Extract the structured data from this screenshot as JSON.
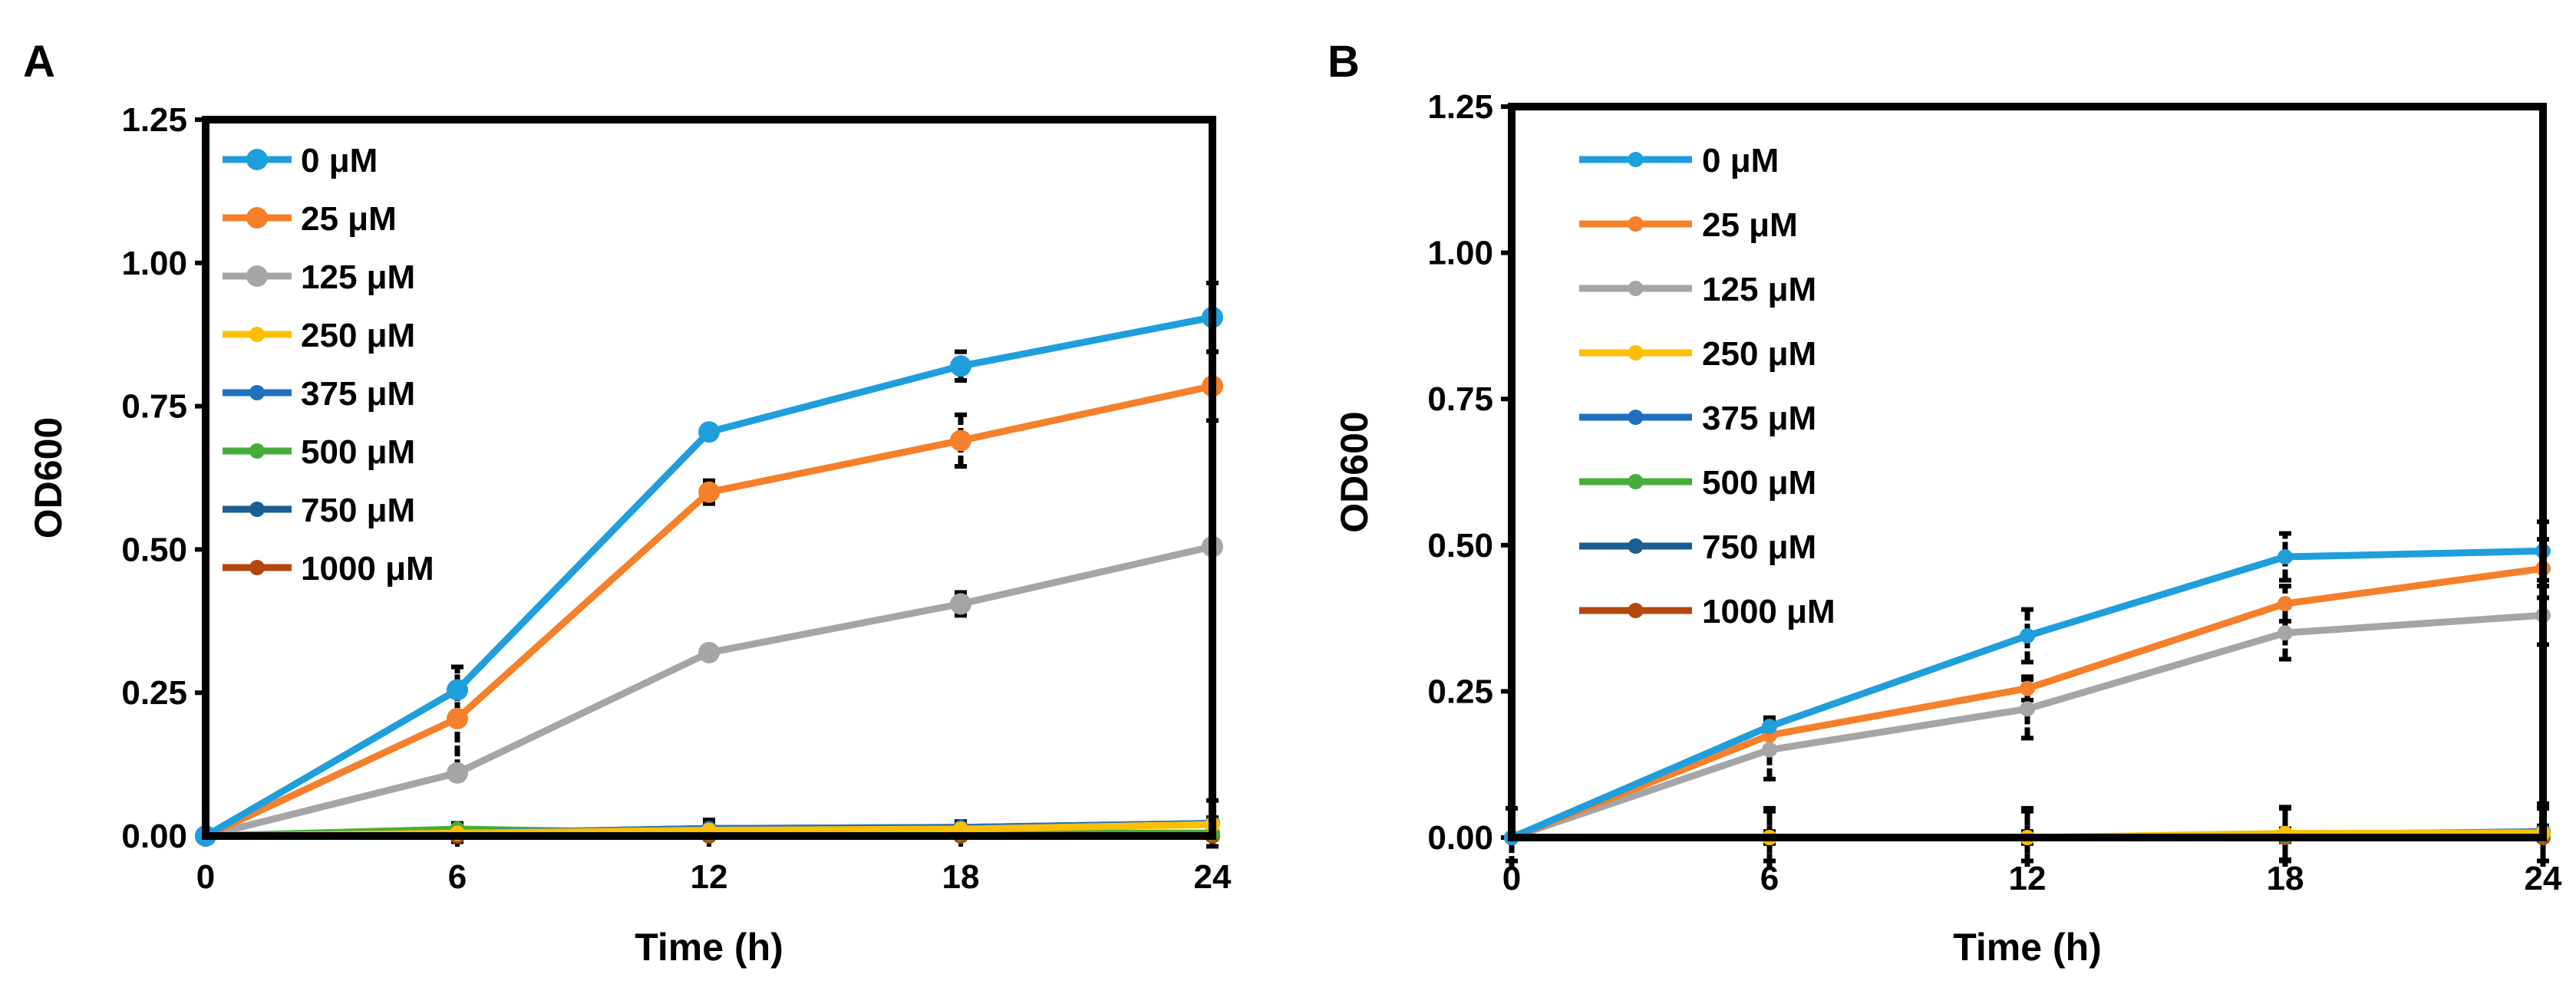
{
  "colors": {
    "0": "#1f9edc",
    "25": "#f57f2a",
    "125": "#a5a5a5",
    "250": "#fdbf00",
    "375": "#1f70c1",
    "500": "#46ad3a",
    "750": "#1a5e93",
    "1000": "#b4480e"
  },
  "chart_data": [
    {
      "panel_label": "A",
      "type": "line",
      "xlabel": "Time (h)",
      "ylabel": "OD600",
      "x": [
        0,
        6,
        12,
        18,
        24
      ],
      "xticks": [
        "0",
        "6",
        "12",
        "18",
        "24"
      ],
      "xlim": [
        0,
        24
      ],
      "ylim": [
        0,
        1.25
      ],
      "yticks": [
        "0.00",
        "0.25",
        "0.50",
        "0.75",
        "1.00",
        "1.25"
      ],
      "grid": false,
      "legend_position": "top-left",
      "series": [
        {
          "name": "0 μM",
          "key": "0",
          "values": [
            0,
            0.255,
            0.705,
            0.82,
            0.905
          ],
          "err": [
            0,
            0.04,
            0.01,
            0.025,
            0.06
          ],
          "big": true
        },
        {
          "name": "25  μM",
          "key": "25",
          "values": [
            0,
            0.205,
            0.6,
            0.69,
            0.785
          ],
          "err": [
            0,
            0.09,
            0.02,
            0.045,
            0.06
          ],
          "big": true
        },
        {
          "name": "125  μM",
          "key": "125",
          "values": [
            0,
            0.11,
            0.32,
            0.405,
            0.505
          ],
          "err": [
            0,
            0.01,
            0.01,
            0.02,
            0.01
          ],
          "big": true
        },
        {
          "name": "250  μM",
          "key": "250",
          "values": [
            0,
            0.005,
            0.01,
            0.012,
            0.02
          ],
          "err": [
            0,
            0.01,
            0.01,
            0.01,
            0.01
          ],
          "big": false
        },
        {
          "name": "375  μM",
          "key": "375",
          "values": [
            0,
            0.005,
            0.013,
            0.015,
            0.022
          ],
          "err": [
            0,
            0.01,
            0.01,
            0.01,
            0.01
          ],
          "big": false
        },
        {
          "name": "500  μM",
          "key": "500",
          "values": [
            0,
            0.012,
            0.005,
            0.005,
            0.005
          ],
          "err": [
            0,
            0.01,
            0.01,
            0.01,
            0.01
          ],
          "big": false
        },
        {
          "name": "750  μM",
          "key": "750",
          "values": [
            0,
            0.005,
            0.013,
            0.015,
            0.022
          ],
          "err": [
            0,
            0.015,
            0.015,
            0.01,
            0.04
          ],
          "big": false
        },
        {
          "name": "1000  μM",
          "key": "1000",
          "values": [
            0,
            0,
            0,
            0,
            0
          ],
          "err": [
            0,
            0,
            0,
            0,
            0
          ],
          "big": false
        }
      ]
    },
    {
      "panel_label": "B",
      "type": "line",
      "xlabel": "Time (h)",
      "ylabel": "OD600",
      "x": [
        0,
        6,
        12,
        18,
        24
      ],
      "xticks": [
        "0",
        "6",
        "12",
        "18",
        "24"
      ],
      "xlim": [
        0,
        24
      ],
      "ylim": [
        0,
        1.25
      ],
      "yticks": [
        "0.00",
        "0.25",
        "0.50",
        "0.75",
        "1.00",
        "1.25"
      ],
      "grid": false,
      "legend_position": "top-left",
      "series": [
        {
          "name": "0 μM",
          "key": "0",
          "values": [
            0,
            0.19,
            0.345,
            0.48,
            0.49
          ],
          "err": [
            0,
            0.015,
            0.045,
            0.04,
            0.05
          ],
          "big": false
        },
        {
          "name": "25  μM",
          "key": "25",
          "values": [
            0,
            0.175,
            0.255,
            0.4,
            0.46
          ],
          "err": [
            0,
            0.02,
            0.02,
            0.03,
            0.05
          ],
          "big": false
        },
        {
          "name": "125  μM",
          "key": "125",
          "values": [
            0,
            0.15,
            0.22,
            0.35,
            0.38
          ],
          "err": [
            0,
            0.05,
            0.05,
            0.045,
            0.05
          ],
          "big": false
        },
        {
          "name": "250  μM",
          "key": "250",
          "values": [
            0,
            0,
            0,
            0.007,
            0.008
          ],
          "err": [
            0,
            0.045,
            0.045,
            0.045,
            0.05
          ],
          "big": false
        },
        {
          "name": "375  μM",
          "key": "375",
          "values": [
            0,
            0,
            0,
            0.005,
            0.01
          ],
          "err": [
            0,
            0.01,
            0.01,
            0.01,
            0.01
          ],
          "big": false
        },
        {
          "name": "500  μM",
          "key": "500",
          "values": [
            0,
            0,
            0,
            0.003,
            0.005
          ],
          "err": [
            0,
            0.01,
            0.01,
            0.01,
            0.01
          ],
          "big": false
        },
        {
          "name": "750  μM",
          "key": "750",
          "values": [
            0,
            0,
            0,
            0.003,
            0.005
          ],
          "err": [
            0,
            0.01,
            0.01,
            0.01,
            0.01
          ],
          "big": false
        },
        {
          "name": "1000  μM",
          "key": "1000",
          "values": [
            0,
            0,
            0,
            0,
            0
          ],
          "err": [
            0.05,
            0.05,
            0.05,
            0.05,
            0.05
          ],
          "big": false
        }
      ]
    }
  ]
}
